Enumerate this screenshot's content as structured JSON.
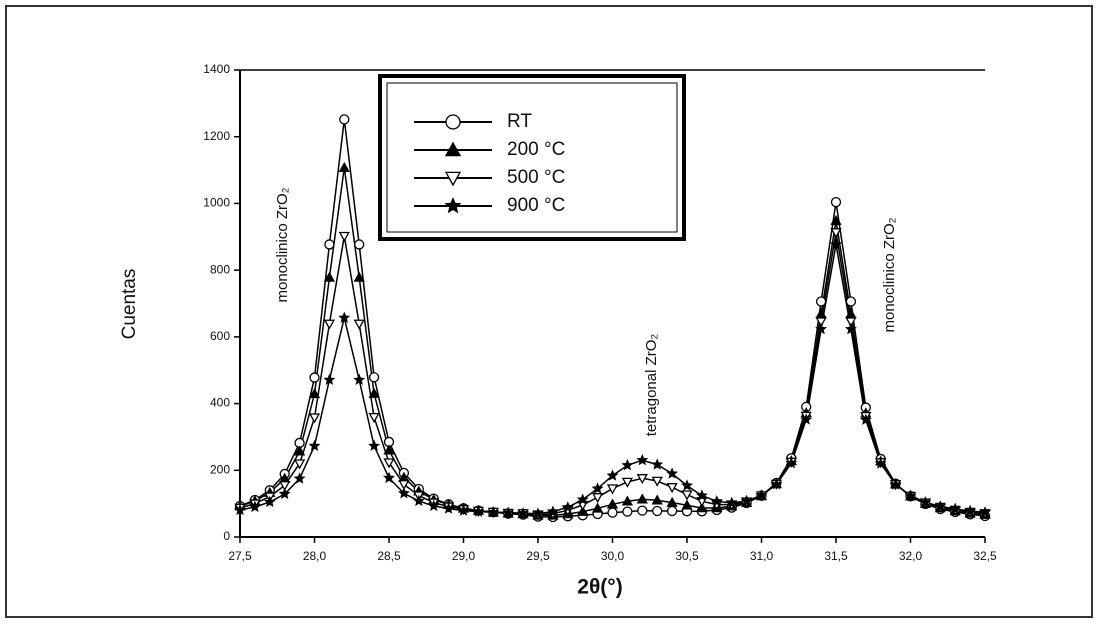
{
  "chart_data": {
    "type": "scatter",
    "xlabel": "2θ(°)",
    "ylabel": "Cuentas",
    "annotations": [
      "monoclinico ZrO₂",
      "tetragonal  ZrO₂",
      "monoclinico ZrO₂"
    ],
    "xlim": [
      27.5,
      32.5
    ],
    "xticks": [
      {
        "value": 27.5,
        "label": "27,5"
      },
      {
        "value": 28.0,
        "label": "28,0"
      },
      {
        "value": 28.5,
        "label": "28,5"
      },
      {
        "value": 29.0,
        "label": "29,0"
      },
      {
        "value": 29.5,
        "label": "29,5"
      },
      {
        "value": 30.0,
        "label": "30,0"
      },
      {
        "value": 30.5,
        "label": "30,5"
      },
      {
        "value": 31.0,
        "label": "31,0"
      },
      {
        "value": 31.5,
        "label": "31,5"
      },
      {
        "value": 32.0,
        "label": "32,0"
      },
      {
        "value": 32.5,
        "label": "32,5"
      }
    ],
    "ylim": [
      0,
      1400
    ],
    "yticks": [
      0,
      200,
      400,
      600,
      800,
      1000,
      1200,
      1400
    ],
    "x": [
      27.5,
      27.6,
      27.7,
      27.8,
      27.9,
      28.0,
      28.1,
      28.2,
      28.3,
      28.4,
      28.5,
      28.6,
      28.7,
      28.8,
      28.9,
      29.0,
      29.1,
      29.2,
      29.3,
      29.4,
      29.5,
      29.6,
      29.7,
      29.8,
      29.9,
      30.0,
      30.1,
      30.2,
      30.3,
      30.4,
      30.5,
      30.6,
      30.7,
      30.8,
      30.9,
      31.0,
      31.1,
      31.2,
      31.3,
      31.4,
      31.5,
      31.6,
      31.7,
      31.8,
      31.9,
      32.0,
      32.1,
      32.2,
      32.3,
      32.4,
      32.5
    ],
    "legend": "upper left",
    "series": [
      {
        "name": "RT",
        "color": "#000000",
        "marker": "circle-open",
        "values": [
          93,
          111,
          140,
          189,
          282,
          478,
          877,
          1252,
          877,
          479,
          285,
          192,
          144,
          115,
          98,
          86,
          79,
          74,
          70,
          67,
          61,
          60,
          62,
          65,
          69,
          73,
          76,
          79,
          78,
          78,
          77,
          77,
          81,
          88,
          102,
          124,
          162,
          236,
          390,
          706,
          1004,
          706,
          388,
          234,
          160,
          122,
          99,
          84,
          75,
          68,
          63
        ]
      },
      {
        "name": "200 °C",
        "color": "#000000",
        "marker": "triangle-up-filled",
        "values": [
          92,
          108,
          133,
          175,
          257,
          429,
          778,
          1107,
          778,
          430,
          260,
          178,
          137,
          112,
          97,
          86,
          79,
          74,
          71,
          69,
          65,
          65,
          69,
          76,
          86,
          98,
          107,
          113,
          110,
          103,
          95,
          87,
          87,
          92,
          103,
          123,
          159,
          228,
          372,
          669,
          948,
          669,
          371,
          227,
          158,
          122,
          100,
          87,
          78,
          71,
          67
        ]
      },
      {
        "name": "500 °C",
        "color": "#000000",
        "marker": "triangle-down-open",
        "values": [
          87,
          100,
          121,
          155,
          220,
          358,
          639,
          902,
          639,
          359,
          223,
          158,
          124,
          103,
          91,
          83,
          78,
          75,
          72,
          71,
          67,
          70,
          80,
          96,
          119,
          145,
          165,
          176,
          168,
          149,
          127,
          107,
          97,
          97,
          106,
          124,
          159,
          225,
          363,
          646,
          913,
          646,
          362,
          224,
          158,
          123,
          103,
          90,
          81,
          75,
          71
        ]
      },
      {
        "name": "900 °C",
        "color": "#000000",
        "marker": "star-filled",
        "values": [
          81,
          90,
          105,
          129,
          175,
          273,
          471,
          657,
          471,
          273,
          177,
          131,
          108,
          93,
          85,
          79,
          76,
          74,
          73,
          71,
          70,
          76,
          89,
          112,
          145,
          184,
          215,
          230,
          217,
          190,
          154,
          124,
          107,
          102,
          108,
          125,
          158,
          221,
          352,
          623,
          877,
          623,
          351,
          220,
          157,
          124,
          104,
          92,
          84,
          78,
          74
        ]
      }
    ]
  }
}
